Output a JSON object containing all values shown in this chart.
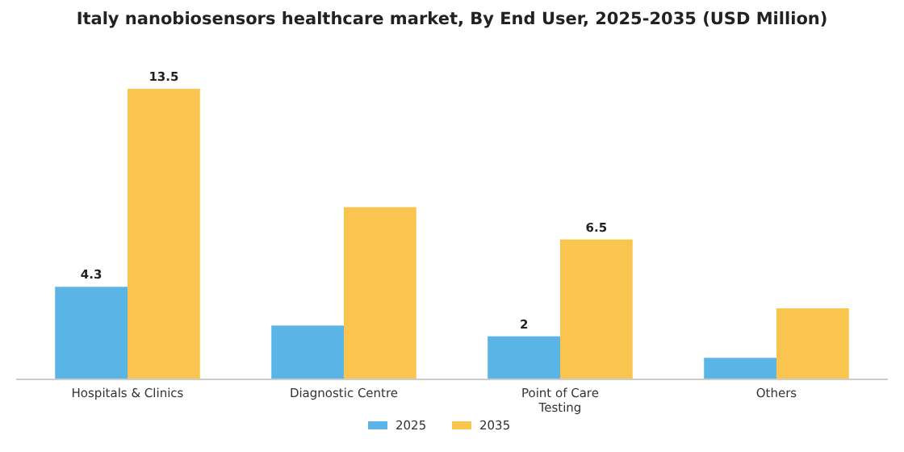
{
  "chart_data": {
    "type": "bar",
    "title": "Italy nanobiosensors healthcare market, By End User, 2025-2035 (USD Million)",
    "categories": [
      "Hospitals & Clinics",
      "Diagnostic Centre",
      "Point of Care Testing",
      "Others"
    ],
    "series": [
      {
        "name": "2025",
        "color": "#5ab4e5",
        "values": [
          4.3,
          2.5,
          2,
          1.0
        ],
        "value_labels": [
          "4.3",
          null,
          "2",
          null
        ]
      },
      {
        "name": "2035",
        "color": "#f9c54e",
        "values": [
          13.5,
          8.0,
          6.5,
          3.3
        ],
        "value_labels": [
          "13.5",
          null,
          "6.5",
          null
        ]
      }
    ],
    "legend": "bottom"
  }
}
